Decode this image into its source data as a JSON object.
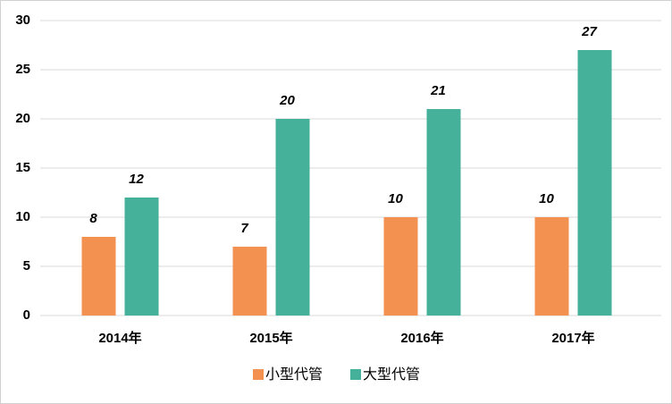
{
  "chart_data": {
    "type": "bar",
    "categories": [
      "2014年",
      "2015年",
      "2016年",
      "2017年"
    ],
    "series": [
      {
        "name": "小型代管",
        "color": "#f39151",
        "values": [
          8,
          7,
          10,
          10
        ]
      },
      {
        "name": "大型代管",
        "color": "#46b19a",
        "values": [
          12,
          20,
          21,
          27
        ]
      }
    ],
    "ylim": [
      0,
      30
    ],
    "yticks": [
      0,
      5,
      10,
      15,
      20,
      25,
      30
    ],
    "grid": true,
    "legend": "bottom"
  }
}
